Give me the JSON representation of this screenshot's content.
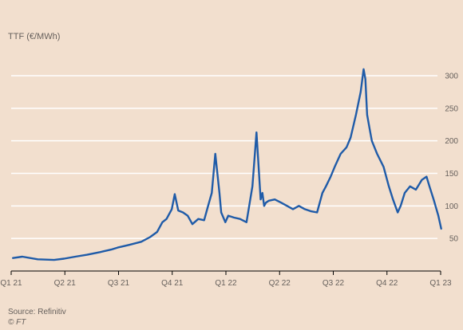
{
  "chart_data": {
    "type": "line",
    "title": "TTF (€/MWh)",
    "xlabel": "",
    "ylabel": "",
    "ylim": [
      0,
      300
    ],
    "yticks": [
      50,
      100,
      150,
      200,
      250,
      300
    ],
    "y_axis_position": "right",
    "grid": "horizontal",
    "x_tick_labels": [
      "Q1 21",
      "Q2 21",
      "Q3 21",
      "Q4 21",
      "Q1 22",
      "Q2 22",
      "Q3 22",
      "Q4 22",
      "Q1 23"
    ],
    "line_color": "#1f5ba8",
    "series": [
      {
        "x": [
          "2021-01-04",
          "2021-01-20",
          "2021-02-15",
          "2021-03-15",
          "2021-04-01",
          "2021-04-20",
          "2021-05-10",
          "2021-06-01",
          "2021-06-20",
          "2021-07-01",
          "2021-07-20",
          "2021-08-10",
          "2021-08-25",
          "2021-09-06",
          "2021-09-15",
          "2021-09-22",
          "2021-10-01",
          "2021-10-06",
          "2021-10-12",
          "2021-10-20",
          "2021-10-28",
          "2021-11-05",
          "2021-11-15",
          "2021-11-25",
          "2021-12-01",
          "2021-12-08",
          "2021-12-14",
          "2021-12-21",
          "2021-12-24",
          "2021-12-31",
          "2022-01-05",
          "2022-01-15",
          "2022-01-25",
          "2022-02-05",
          "2022-02-15",
          "2022-02-22",
          "2022-03-01",
          "2022-03-04",
          "2022-03-07",
          "2022-03-10",
          "2022-03-15",
          "2022-03-25",
          "2022-04-05",
          "2022-04-15",
          "2022-04-25",
          "2022-05-05",
          "2022-05-15",
          "2022-05-25",
          "2022-06-05",
          "2022-06-14",
          "2022-06-20",
          "2022-06-28",
          "2022-07-05",
          "2022-07-15",
          "2022-07-25",
          "2022-08-01",
          "2022-08-10",
          "2022-08-18",
          "2022-08-23",
          "2022-08-26",
          "2022-08-29",
          "2022-09-02",
          "2022-09-06",
          "2022-09-15",
          "2022-09-26",
          "2022-10-05",
          "2022-10-12",
          "2022-10-20",
          "2022-10-25",
          "2022-11-01",
          "2022-11-10",
          "2022-11-20",
          "2022-11-30",
          "2022-12-08",
          "2022-12-13",
          "2022-12-20",
          "2022-12-28",
          "2023-01-02"
        ],
        "values": [
          20,
          22,
          18,
          17,
          19,
          22,
          25,
          29,
          33,
          36,
          40,
          45,
          52,
          60,
          75,
          80,
          95,
          118,
          93,
          90,
          85,
          72,
          80,
          78,
          98,
          120,
          180,
          120,
          90,
          75,
          85,
          82,
          80,
          75,
          130,
          213,
          110,
          120,
          100,
          105,
          108,
          110,
          105,
          100,
          95,
          100,
          95,
          92,
          90,
          120,
          130,
          145,
          160,
          180,
          190,
          205,
          240,
          275,
          310,
          295,
          240,
          220,
          200,
          180,
          160,
          130,
          110,
          90,
          100,
          120,
          130,
          125,
          140,
          145,
          130,
          110,
          85,
          65
        ]
      }
    ]
  },
  "source": "Source: Refinitiv",
  "credit": "© FT"
}
